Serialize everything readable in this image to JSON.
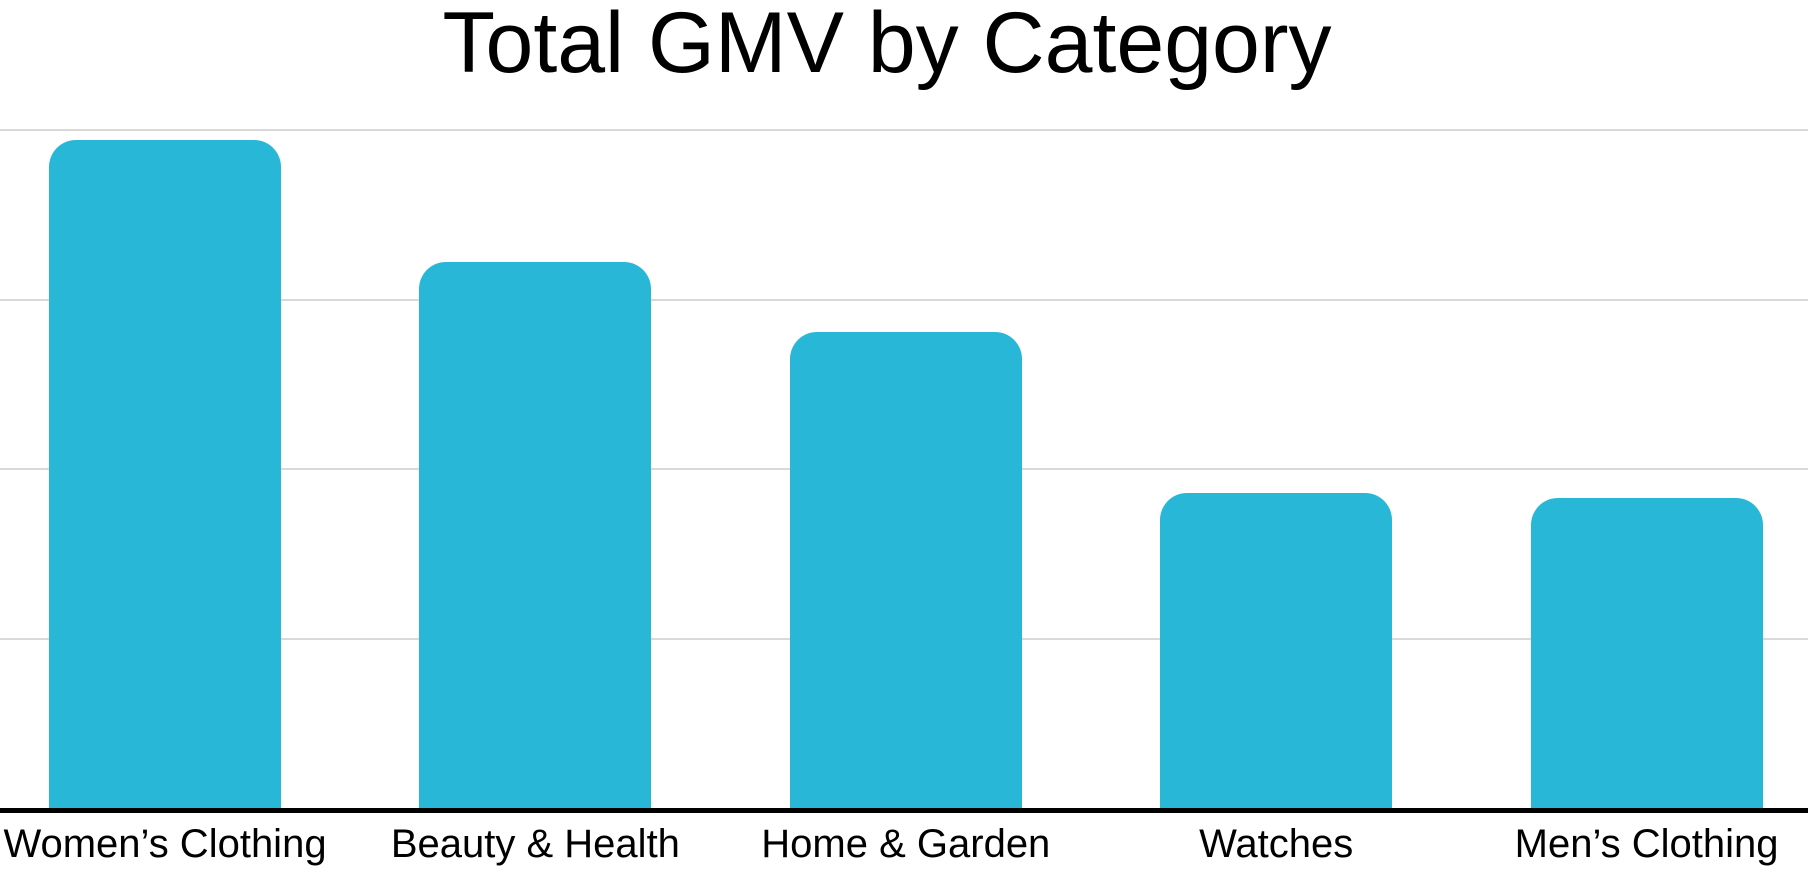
{
  "page": {
    "background": "#ffffff"
  },
  "chart_data": {
    "type": "bar",
    "title": "Total GMV by Category",
    "categories": [
      "Women’s Clothing",
      "Beauty & Health",
      "Home & Garden",
      "Watches",
      "Men’s Clothing"
    ],
    "values": [
      3.94,
      3.22,
      2.81,
      1.86,
      1.83
    ],
    "value_units": "gridline units (y-axis has no tick labels; 1 unit = one gridline interval)",
    "xlabel": "",
    "ylabel": "",
    "ylim": [
      0,
      4.3
    ],
    "gridline_values": [
      1,
      2,
      3,
      4
    ],
    "grid": "horizontal",
    "legend": "none",
    "bar_color": "#29B7D8",
    "gridline_color": "#D9D9D9",
    "axis_color": "#000000",
    "text_color": "#000000"
  }
}
